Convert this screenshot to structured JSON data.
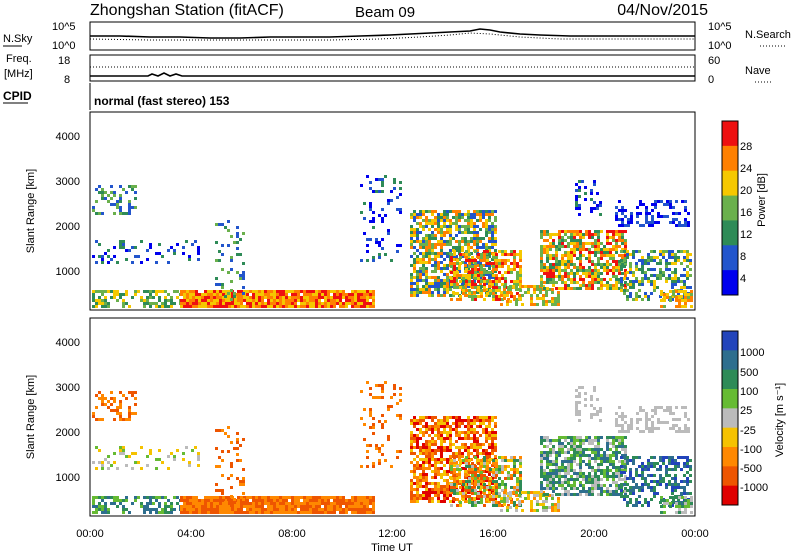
{
  "header": {
    "station": "Zhongshan Station (fitACF)",
    "beam": "Beam 09",
    "date": "04/Nov/2015"
  },
  "top_panels": {
    "nsky_label": "N.Sky",
    "nsky_ticks": [
      "10^5",
      "10^0"
    ],
    "nsearch_label": "N.Search",
    "nsearch_ticks": [
      "10^5",
      "10^0"
    ],
    "freq_label_1": "Freq.",
    "freq_label_2": "[MHz]",
    "freq_ticks": [
      "18",
      "8"
    ],
    "nave_label": "Nave",
    "nave_ticks": [
      "60",
      "0"
    ],
    "cpid_label": "CPID",
    "cpid_text": "normal (fast stereo) 153"
  },
  "chart_data": [
    {
      "type": "heatmap",
      "name": "power",
      "ylabel": "Slant Range [km]",
      "ylim": [
        180,
        4600
      ],
      "yticks": [
        "4000",
        "3000",
        "2000",
        "1000"
      ],
      "colorbar_label": "Power [dB]",
      "colorbar_ticks": [
        "28",
        "24",
        "20",
        "16",
        "12",
        "8",
        "4"
      ],
      "colors": [
        "#0000ee",
        "#2255cc",
        "#2e8b57",
        "#6ab04c",
        "#f5c800",
        "#ff8000",
        "#ee1010"
      ]
    },
    {
      "type": "heatmap",
      "name": "velocity",
      "ylabel": "Slant Range [km]",
      "ylim": [
        180,
        4600
      ],
      "yticks": [
        "4000",
        "3000",
        "2000",
        "1000"
      ],
      "colorbar_label": "Velocity [m s⁻¹]",
      "colorbar_ticks": [
        "1000",
        "500",
        "100",
        "25",
        "-25",
        "-100",
        "-500",
        "-1000"
      ],
      "colors": [
        "#2244bb",
        "#2e6e8e",
        "#2e8b57",
        "#66bb33",
        "#bbbbbb",
        "#f5c200",
        "#ff8800",
        "#ee5500",
        "#e00000"
      ]
    }
  ],
  "x_axis": {
    "ticks": [
      "00:00",
      "04:00",
      "08:00",
      "12:00",
      "16:00",
      "20:00",
      "00:00"
    ],
    "label": "Time UT"
  }
}
